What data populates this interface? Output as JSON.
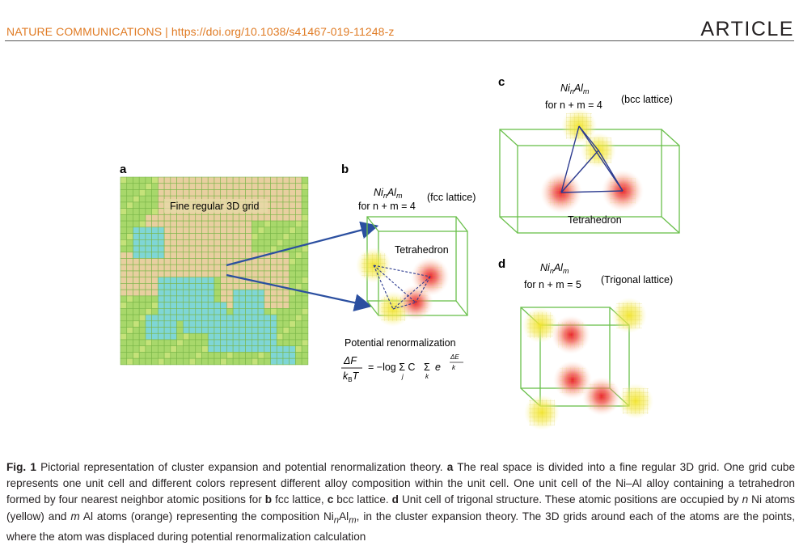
{
  "header": {
    "journal": "NATURE COMMUNICATIONS | https://doi.org/10.1038/s41467-019-11248-z",
    "article_type": "ARTICLE"
  },
  "panels": {
    "a": {
      "letter": "a",
      "grid_label": "Fine regular 3D grid"
    },
    "b": {
      "letter": "b",
      "formula_ni": "Ni",
      "formula_n": "n",
      "formula_al": "Al",
      "formula_m": "m",
      "constraint": "for n + m = 4",
      "lattice": "(fcc lattice)",
      "shape_label": "Tetrahedron",
      "renorm_label": "Potential renormalization",
      "eq_lhs_num": "ΔF",
      "eq_lhs_den": "k",
      "eq_lhs_den_sub": "B",
      "eq_lhs_den_T": "T",
      "eq_rhs": "= −log Σ C",
      "eq_rhs_sub_j": "j",
      "eq_rhs_sub_k": "k",
      "eq_sigma2": "Σ",
      "eq_exp": "e",
      "eq_exp_num": "ΔE",
      "eq_exp_den": "k"
    },
    "c": {
      "letter": "c",
      "constraint": "for n + m = 4",
      "lattice": "(bcc lattice)",
      "shape_label": "Tetrahedron"
    },
    "d": {
      "letter": "d",
      "constraint": "for n + m = 5",
      "lattice": "(Trigonal lattice)"
    }
  },
  "caption": {
    "fig_label": "Fig. 1",
    "title": "Pictorial representation of cluster expansion and potential renormalization theory.",
    "a_label": "a",
    "a_text": "The real space is divided into a fine regular 3D grid. One grid cube represents one unit cell and different colors represent different alloy composition within the unit cell. One unit cell of the Ni–Al alloy containing a tetrahedron formed by four nearest neighbor atomic positions for",
    "b_label": "b",
    "b_text": "fcc lattice,",
    "c_label": "c",
    "c_text": "bcc lattice.",
    "d_label": "d",
    "d_text": "Unit cell of trigonal structure. These atomic positions are occupied by",
    "n_var": "n",
    "mid_text": "Ni atoms (yellow) and",
    "m_var": "m",
    "mid_text2": "Al atoms (orange) representing the composition Ni",
    "comp_n": "n",
    "comp_al": "Al",
    "comp_m": "m",
    "end_text": ", in the cluster expansion theory. The 3D grids around each of the atoms are the points, where the atom was displaced during potential renormalization calculation"
  },
  "colors": {
    "accent_orange": "#e07b24",
    "cube_green": "#6abf4b",
    "arrow_blue": "#2b4fa0",
    "ni_yellow": "#f5e84a",
    "al_red": "#ee2b2b",
    "grid_green": "#a8d86b",
    "grid_cyan": "#7fd6d6",
    "grid_tan": "#e8cfa0"
  }
}
